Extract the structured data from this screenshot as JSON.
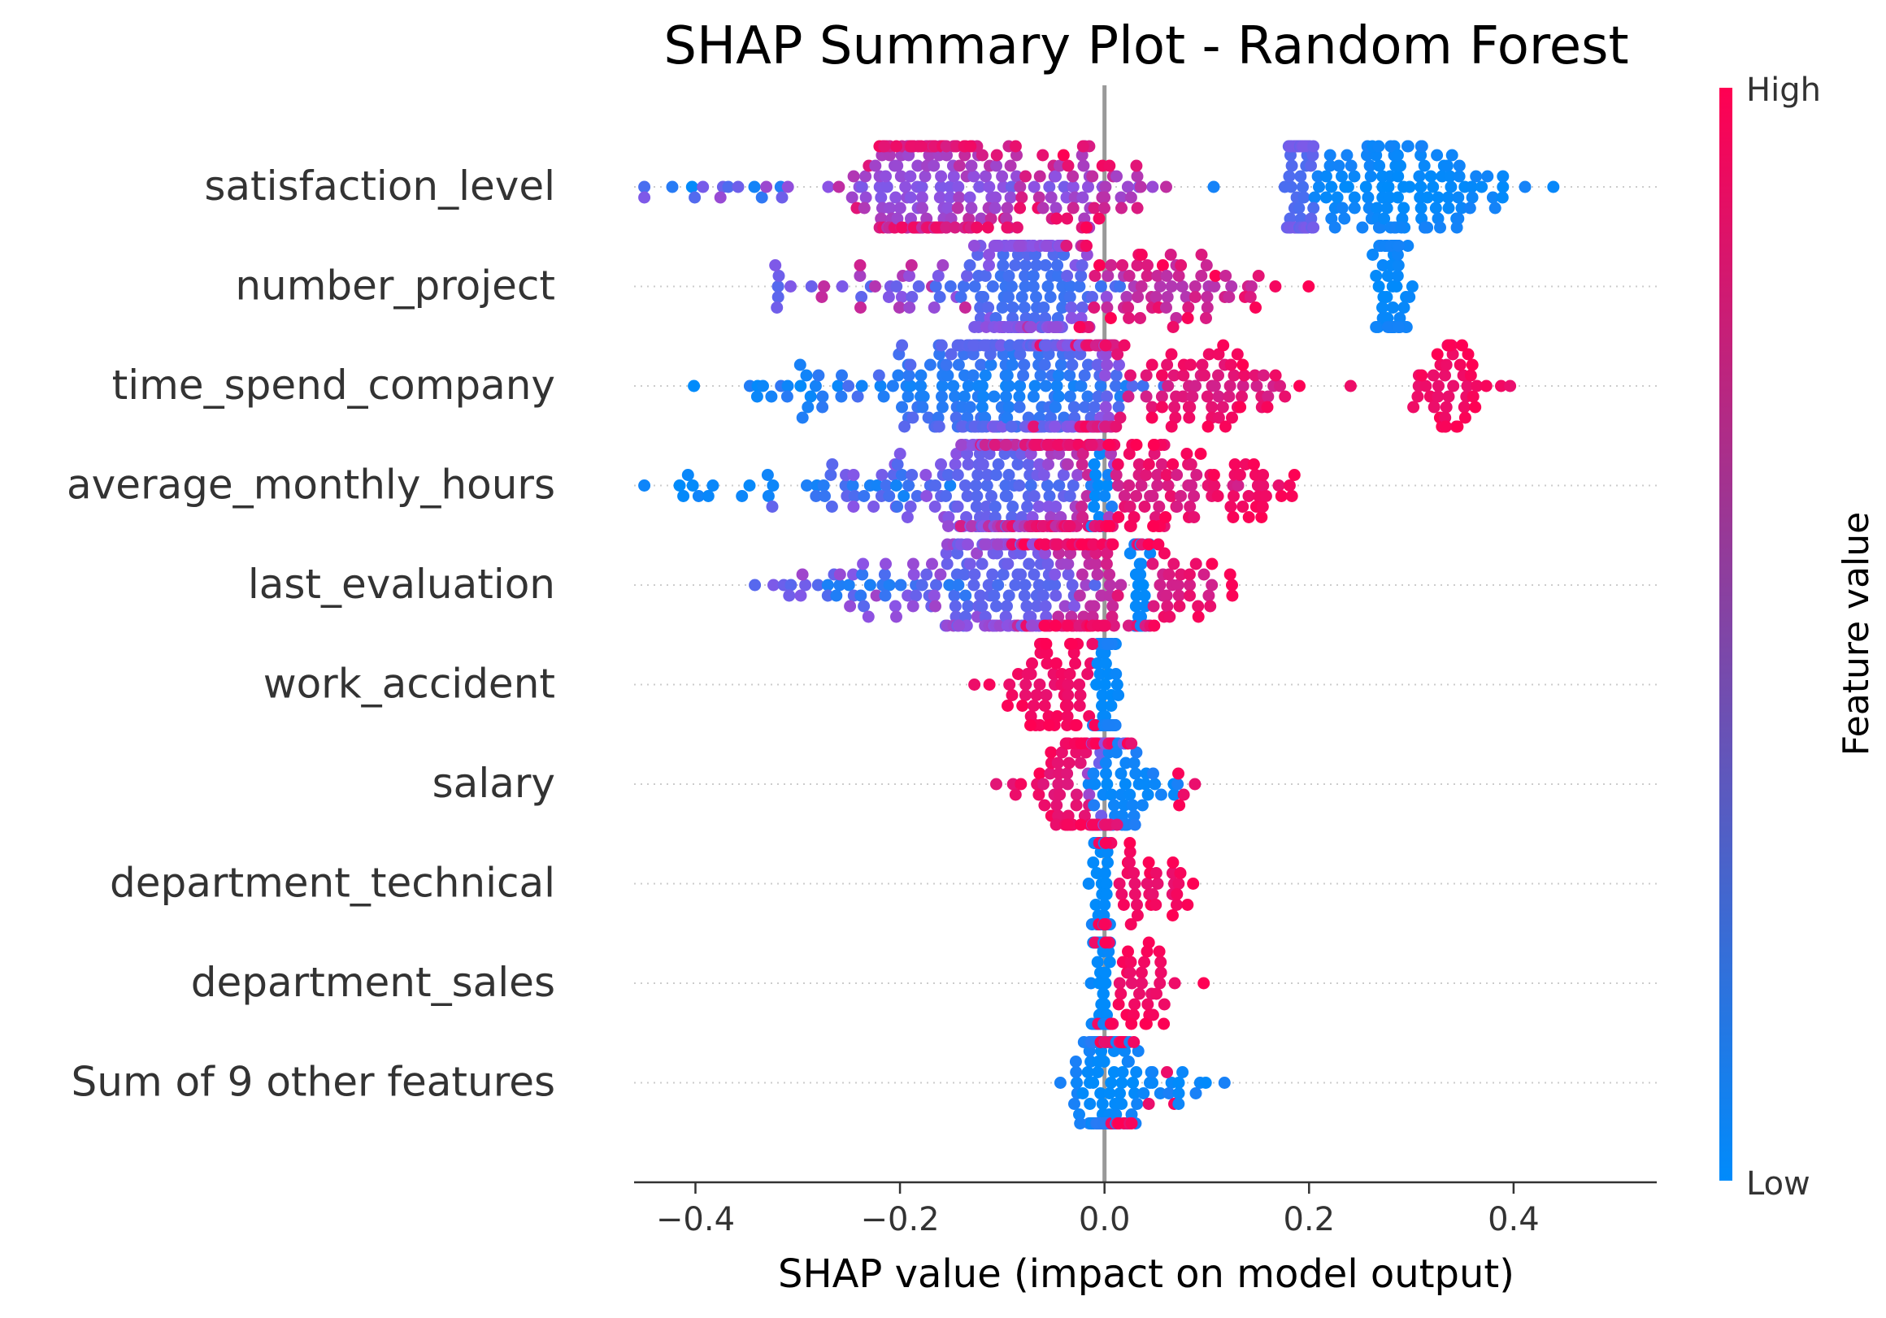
{
  "chart_data": {
    "type": "scatter",
    "title": "SHAP Summary Plot - Random Forest",
    "xlabel": "SHAP value (impact on model output)",
    "xlim": [
      -0.46,
      0.54
    ],
    "x_ticks": [
      -0.4,
      -0.2,
      0.0,
      0.2,
      0.4
    ],
    "x_tick_labels": [
      "−0.4",
      "−0.2",
      "0.0",
      "0.2",
      "0.4"
    ],
    "colorbar": {
      "label": "Feature value",
      "high_label": "High",
      "low_label": "Low",
      "high_color": "#ff0052",
      "low_color": "#008bfb"
    },
    "features": [
      {
        "name": "satisfaction_level",
        "clusters": [
          {
            "c": -0.17,
            "s": 0.035,
            "n": 170,
            "vLo": 0.45,
            "vHi": 0.95
          },
          {
            "c": -0.06,
            "s": 0.05,
            "n": 50,
            "vLo": 0.4,
            "vHi": 0.95
          },
          {
            "c": 0.0,
            "s": 0.03,
            "n": 30,
            "vLo": 0.5,
            "vHi": 1.0
          },
          {
            "c": 0.19,
            "s": 0.007,
            "n": 65,
            "vLo": 0.25,
            "vHi": 0.45
          },
          {
            "c": 0.29,
            "s": 0.05,
            "n": 120,
            "vLo": 0.0,
            "vHi": 0.08
          },
          {
            "c": -0.33,
            "s": 0.06,
            "n": 18,
            "vLo": 0.0,
            "vHi": 0.7
          }
        ]
      },
      {
        "name": "number_project",
        "clusters": [
          {
            "c": -0.08,
            "s": 0.035,
            "n": 180,
            "vLo": 0.2,
            "vHi": 0.55
          },
          {
            "c": 0.05,
            "s": 0.06,
            "n": 80,
            "vLo": 0.65,
            "vHi": 1.0
          },
          {
            "c": 0.28,
            "s": 0.01,
            "n": 55,
            "vLo": 0.0,
            "vHi": 0.08
          },
          {
            "c": -0.2,
            "s": 0.05,
            "n": 25,
            "vLo": 0.3,
            "vHi": 0.8
          },
          {
            "c": -0.32,
            "s": 0.006,
            "n": 6,
            "vLo": 0.3,
            "vHi": 0.5
          }
        ]
      },
      {
        "name": "time_spend_company",
        "clusters": [
          {
            "c": -0.13,
            "s": 0.06,
            "n": 160,
            "vLo": 0.05,
            "vHi": 0.35
          },
          {
            "c": -0.05,
            "s": 0.035,
            "n": 90,
            "vLo": 0.2,
            "vHi": 0.55
          },
          {
            "c": 0.0,
            "s": 0.004,
            "n": 40,
            "vLo": 0.5,
            "vHi": 0.85
          },
          {
            "c": 0.09,
            "s": 0.06,
            "n": 90,
            "vLo": 0.8,
            "vHi": 1.0
          },
          {
            "c": 0.34,
            "s": 0.02,
            "n": 45,
            "vLo": 0.9,
            "vHi": 1.0
          },
          {
            "c": -0.3,
            "s": 0.03,
            "n": 20,
            "vLo": 0.0,
            "vHi": 0.2
          }
        ]
      },
      {
        "name": "average_monthly_hours",
        "clusters": [
          {
            "c": -0.1,
            "s": 0.04,
            "n": 150,
            "vLo": 0.25,
            "vHi": 0.6
          },
          {
            "c": -0.05,
            "s": 0.03,
            "n": 110,
            "vLo": 0.6,
            "vHi": 0.95
          },
          {
            "c": -0.005,
            "s": 0.005,
            "n": 30,
            "vLo": 0.0,
            "vHi": 0.12
          },
          {
            "c": 0.05,
            "s": 0.04,
            "n": 70,
            "vLo": 0.8,
            "vHi": 1.0
          },
          {
            "c": 0.15,
            "s": 0.02,
            "n": 25,
            "vLo": 0.9,
            "vHi": 1.0
          },
          {
            "c": -0.25,
            "s": 0.05,
            "n": 40,
            "vLo": 0.05,
            "vHi": 0.5
          },
          {
            "c": -0.37,
            "s": 0.04,
            "n": 12,
            "vLo": 0.0,
            "vHi": 0.08
          }
        ]
      },
      {
        "name": "last_evaluation",
        "clusters": [
          {
            "c": -0.1,
            "s": 0.04,
            "n": 140,
            "vLo": 0.3,
            "vHi": 0.6
          },
          {
            "c": -0.03,
            "s": 0.025,
            "n": 90,
            "vLo": 0.7,
            "vHi": 1.0
          },
          {
            "c": 0.035,
            "s": 0.004,
            "n": 40,
            "vLo": 0.0,
            "vHi": 0.1
          },
          {
            "c": 0.07,
            "s": 0.025,
            "n": 40,
            "vLo": 0.8,
            "vHi": 1.0
          },
          {
            "c": -0.22,
            "s": 0.05,
            "n": 40,
            "vLo": 0.05,
            "vHi": 0.6
          },
          {
            "c": -0.32,
            "s": 0.02,
            "n": 6,
            "vLo": 0.3,
            "vHi": 0.5
          }
        ]
      },
      {
        "name": "work_accident",
        "clusters": [
          {
            "c": 0.0,
            "s": 0.006,
            "n": 90,
            "vLo": 0.0,
            "vHi": 0.1
          },
          {
            "c": -0.05,
            "s": 0.025,
            "n": 60,
            "vLo": 0.9,
            "vHi": 1.0
          }
        ]
      },
      {
        "name": "salary",
        "clusters": [
          {
            "c": -0.03,
            "s": 0.025,
            "n": 70,
            "vLo": 0.85,
            "vHi": 1.0
          },
          {
            "c": -0.004,
            "s": 0.006,
            "n": 50,
            "vLo": 0.4,
            "vHi": 0.6
          },
          {
            "c": 0.02,
            "s": 0.02,
            "n": 50,
            "vLo": 0.0,
            "vHi": 0.12
          },
          {
            "c": 0.08,
            "s": 0.01,
            "n": 4,
            "vLo": 0.9,
            "vHi": 1.0
          }
        ]
      },
      {
        "name": "department_technical",
        "clusters": [
          {
            "c": -0.003,
            "s": 0.004,
            "n": 100,
            "vLo": 0.0,
            "vHi": 0.08
          },
          {
            "c": 0.04,
            "s": 0.025,
            "n": 40,
            "vLo": 0.9,
            "vHi": 1.0
          }
        ]
      },
      {
        "name": "department_sales",
        "clusters": [
          {
            "c": -0.003,
            "s": 0.004,
            "n": 100,
            "vLo": 0.0,
            "vHi": 0.08
          },
          {
            "c": 0.035,
            "s": 0.025,
            "n": 40,
            "vLo": 0.9,
            "vHi": 1.0
          }
        ]
      },
      {
        "name": "Sum of 9 other features",
        "clusters": [
          {
            "c": 0.0,
            "s": 0.01,
            "n": 130,
            "vLo": 0.0,
            "vHi": 0.15
          },
          {
            "c": 0.02,
            "s": 0.04,
            "n": 50,
            "vLo": 0.0,
            "vHi": 0.1
          },
          {
            "c": 0.03,
            "s": 0.03,
            "n": 20,
            "vLo": 0.85,
            "vHi": 1.0
          }
        ]
      }
    ]
  }
}
